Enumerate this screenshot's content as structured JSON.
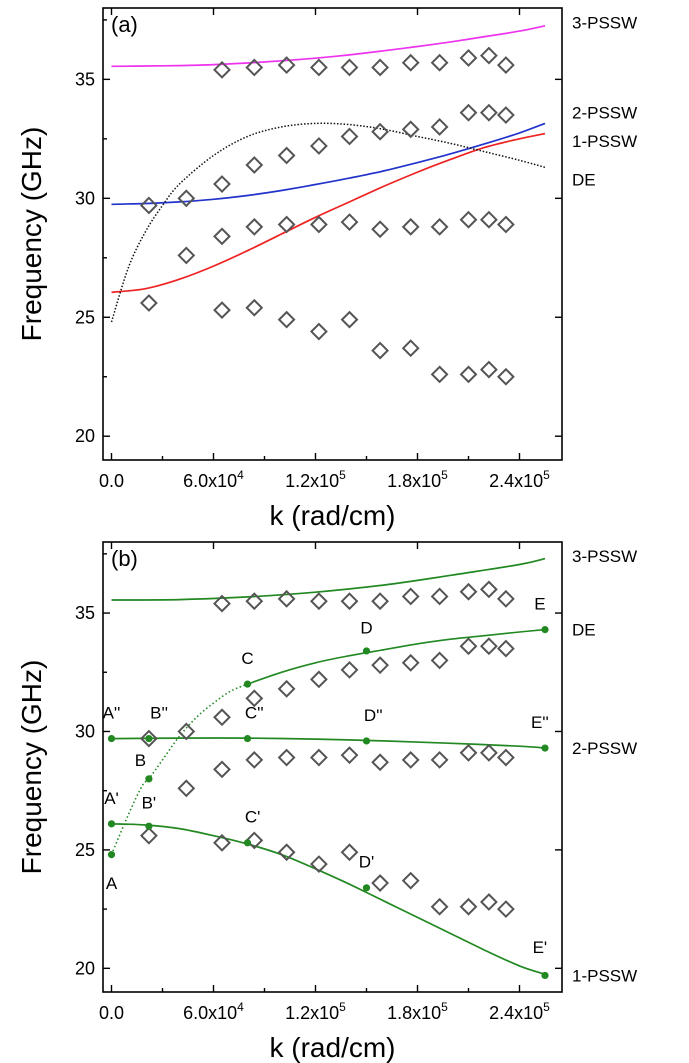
{
  "charts": [
    {
      "type": "scatter",
      "panel_label": "(a)",
      "xlabel": "k (rad/cm)",
      "ylabel": "Frequency (GHz)",
      "xlim": [
        -5000,
        265000
      ],
      "ylim": [
        19,
        38
      ],
      "xticks": [
        0,
        60000,
        120000,
        180000,
        240000
      ],
      "xtick_labels": [
        {
          "mant": "0.0",
          "exp": ""
        },
        {
          "mant": "6.0x10",
          "exp": "4"
        },
        {
          "mant": "1.2x10",
          "exp": "5"
        },
        {
          "mant": "1.8x10",
          "exp": "5"
        },
        {
          "mant": "2.4x10",
          "exp": "5"
        }
      ],
      "yticks": [
        20,
        25,
        30,
        35
      ],
      "ytick_labels": [
        "20",
        "25",
        "30",
        "35"
      ],
      "series": [
        {
          "name": "3-PSSW",
          "color": "#ee33ee",
          "style": "solid",
          "x": [
            0,
            20000,
            40000,
            60000,
            80000,
            100000,
            120000,
            140000,
            160000,
            180000,
            200000,
            220000,
            240000,
            255000
          ],
          "y": [
            35.55,
            35.56,
            35.58,
            35.62,
            35.69,
            35.78,
            35.89,
            36.03,
            36.2,
            36.38,
            36.58,
            36.8,
            37.03,
            37.25
          ]
        },
        {
          "name": "2-PSSW",
          "color": "#2233cc",
          "style": "solid",
          "x": [
            0,
            20000,
            40000,
            60000,
            80000,
            100000,
            120000,
            140000,
            160000,
            180000,
            200000,
            220000,
            240000,
            255000
          ],
          "y": [
            29.75,
            29.78,
            29.85,
            29.96,
            30.12,
            30.33,
            30.58,
            30.85,
            31.15,
            31.5,
            31.88,
            32.3,
            32.75,
            33.15
          ]
        },
        {
          "name": "1-PSSW",
          "color": "#ee2222",
          "style": "solid",
          "x": [
            0,
            20000,
            40000,
            60000,
            80000,
            100000,
            120000,
            140000,
            160000,
            180000,
            200000,
            220000,
            240000,
            255000
          ],
          "y": [
            26.05,
            26.2,
            26.6,
            27.15,
            27.8,
            28.5,
            29.2,
            29.85,
            30.5,
            31.1,
            31.65,
            32.15,
            32.5,
            32.72
          ]
        },
        {
          "name": "DE",
          "color": "#111111",
          "style": "dotted",
          "x": [
            0,
            10000,
            20000,
            30000,
            40000,
            60000,
            80000,
            100000,
            120000,
            140000,
            160000,
            180000,
            200000,
            220000,
            240000,
            255000
          ],
          "y": [
            24.8,
            27.1,
            28.6,
            29.7,
            30.6,
            31.8,
            32.6,
            33.0,
            33.15,
            33.1,
            32.9,
            32.6,
            32.3,
            31.95,
            31.6,
            31.3
          ]
        },
        {
          "name": "",
          "marker": "diamond",
          "color": "#555555",
          "x": [
            22000,
            44000,
            65000,
            84000,
            103000,
            122000,
            140000,
            158000,
            176000,
            193000,
            210000,
            222000,
            232000,
            22000,
            44000,
            65000,
            84000,
            103000,
            122000,
            140000,
            158000,
            176000,
            193000,
            210000,
            222000,
            232000,
            65000,
            84000,
            103000,
            122000,
            140000,
            158000,
            176000,
            193000,
            210000,
            222000,
            232000,
            65000,
            84000,
            103000,
            122000,
            140000,
            158000,
            176000,
            193000,
            210000,
            222000,
            232000
          ],
          "y": [
            25.6,
            27.6,
            25.3,
            25.4,
            24.9,
            24.4,
            24.9,
            23.6,
            23.7,
            22.6,
            22.6,
            22.8,
            22.5,
            29.7,
            30.0,
            28.4,
            28.8,
            28.9,
            28.9,
            29.0,
            28.7,
            28.8,
            28.8,
            29.1,
            29.1,
            28.9,
            30.6,
            31.4,
            31.8,
            32.2,
            32.6,
            32.8,
            32.9,
            33.0,
            33.6,
            33.6,
            33.5,
            35.4,
            35.5,
            35.6,
            35.5,
            35.5,
            35.5,
            35.7,
            35.7,
            35.9,
            36.0,
            35.6
          ]
        }
      ],
      "right_labels": [
        "3-PSSW",
        "2-PSSW",
        "1-PSSW",
        "DE"
      ],
      "right_label_y": [
        37.4,
        33.6,
        32.4,
        30.8
      ]
    },
    {
      "type": "scatter",
      "panel_label": "(b)",
      "xlabel": "k (rad/cm)",
      "ylabel": "Frequency (GHz)",
      "xlim": [
        -5000,
        265000
      ],
      "ylim": [
        19,
        38
      ],
      "xticks": [
        0,
        60000,
        120000,
        180000,
        240000
      ],
      "xtick_labels": [
        {
          "mant": "0.0",
          "exp": ""
        },
        {
          "mant": "6.0x10",
          "exp": "4"
        },
        {
          "mant": "1.2x10",
          "exp": "5"
        },
        {
          "mant": "1.8x10",
          "exp": "5"
        },
        {
          "mant": "2.4x10",
          "exp": "5"
        }
      ],
      "yticks": [
        20,
        25,
        30,
        35
      ],
      "ytick_labels": [
        "20",
        "25",
        "30",
        "35"
      ],
      "series": [
        {
          "name": "3-PSSW",
          "color": "#228822",
          "style": "solid",
          "x": [
            0,
            40000,
            80000,
            120000,
            160000,
            200000,
            240000,
            255000
          ],
          "y": [
            35.55,
            35.57,
            35.68,
            35.88,
            36.18,
            36.6,
            37.05,
            37.3
          ]
        },
        {
          "name": "DE",
          "color": "#228822",
          "style": "dotted-solid",
          "x": [
            0,
            10000,
            18000,
            22000,
            30000,
            40000,
            50000,
            60000,
            70000,
            80000,
            100000,
            120000,
            140000,
            160000,
            180000,
            200000,
            220000,
            240000,
            255000
          ],
          "y": [
            24.8,
            26.5,
            27.7,
            28.0,
            28.8,
            29.8,
            30.6,
            31.2,
            31.7,
            32.0,
            32.5,
            32.9,
            33.2,
            33.45,
            33.7,
            33.9,
            34.05,
            34.2,
            34.3
          ],
          "solid_from_x": 80000
        },
        {
          "name": "2-PSSW",
          "color": "#228822",
          "style": "solid",
          "x": [
            0,
            40000,
            80000,
            120000,
            160000,
            200000,
            240000,
            255000
          ],
          "y": [
            29.7,
            29.72,
            29.72,
            29.68,
            29.6,
            29.5,
            29.38,
            29.3
          ]
        },
        {
          "name": "1-PSSW",
          "color": "#228822",
          "style": "solid",
          "x": [
            0,
            20000,
            40000,
            60000,
            80000,
            100000,
            120000,
            140000,
            160000,
            180000,
            200000,
            220000,
            240000,
            255000
          ],
          "y": [
            26.1,
            26.05,
            25.9,
            25.6,
            25.25,
            24.8,
            24.2,
            23.55,
            22.85,
            22.15,
            21.45,
            20.75,
            20.1,
            19.75
          ]
        },
        {
          "name": "",
          "marker": "diamond",
          "color": "#555555",
          "x": [
            22000,
            44000,
            65000,
            84000,
            103000,
            122000,
            140000,
            158000,
            176000,
            193000,
            210000,
            222000,
            232000,
            22000,
            44000,
            65000,
            84000,
            103000,
            122000,
            140000,
            158000,
            176000,
            193000,
            210000,
            222000,
            232000,
            65000,
            84000,
            103000,
            122000,
            140000,
            158000,
            176000,
            193000,
            210000,
            222000,
            232000,
            65000,
            84000,
            103000,
            122000,
            140000,
            158000,
            176000,
            193000,
            210000,
            222000,
            232000
          ],
          "y": [
            25.6,
            27.6,
            25.3,
            25.4,
            24.9,
            24.4,
            24.9,
            23.6,
            23.7,
            22.6,
            22.6,
            22.8,
            22.5,
            29.7,
            30.0,
            28.4,
            28.8,
            28.9,
            28.9,
            29.0,
            28.7,
            28.8,
            28.8,
            29.1,
            29.1,
            28.9,
            30.6,
            31.4,
            31.8,
            32.2,
            32.6,
            32.8,
            32.9,
            33.0,
            33.6,
            33.6,
            33.5,
            35.4,
            35.5,
            35.6,
            35.5,
            35.5,
            35.5,
            35.7,
            35.7,
            35.9,
            36.0,
            35.6
          ]
        }
      ],
      "key_points": [
        {
          "label": "A",
          "x": 0,
          "y": 24.8,
          "lx": 0,
          "ly": 23.6
        },
        {
          "label": "A'",
          "x": 0,
          "y": 26.1,
          "lx": 0,
          "ly": 27.2
        },
        {
          "label": "A''",
          "x": 0,
          "y": 29.7,
          "lx": 0,
          "ly": 30.8
        },
        {
          "label": "B",
          "x": 22000,
          "y": 28.0,
          "lx": 17000,
          "ly": 28.8
        },
        {
          "label": "B'",
          "x": 22000,
          "y": 26.0,
          "lx": 22000,
          "ly": 27.0
        },
        {
          "label": "B''",
          "x": 22000,
          "y": 29.7,
          "lx": 28000,
          "ly": 30.8
        },
        {
          "label": "C",
          "x": 80000,
          "y": 32.0,
          "lx": 80000,
          "ly": 33.1
        },
        {
          "label": "C'",
          "x": 80000,
          "y": 25.3,
          "lx": 83000,
          "ly": 26.4
        },
        {
          "label": "C''",
          "x": 80000,
          "y": 29.7,
          "lx": 84000,
          "ly": 30.8
        },
        {
          "label": "D",
          "x": 150000,
          "y": 33.4,
          "lx": 150000,
          "ly": 34.4
        },
        {
          "label": "D'",
          "x": 150000,
          "y": 23.4,
          "lx": 150000,
          "ly": 24.5
        },
        {
          "label": "D''",
          "x": 150000,
          "y": 29.6,
          "lx": 154000,
          "ly": 30.7
        },
        {
          "label": "E",
          "x": 255000,
          "y": 34.3,
          "lx": 252000,
          "ly": 35.4
        },
        {
          "label": "E'",
          "x": 255000,
          "y": 19.7,
          "lx": 252000,
          "ly": 20.9
        },
        {
          "label": "E''",
          "x": 255000,
          "y": 29.3,
          "lx": 252000,
          "ly": 30.4
        }
      ],
      "key_point_color": "#228822",
      "right_labels": [
        "3-PSSW",
        "DE",
        "2-PSSW",
        "1-PSSW"
      ],
      "right_label_y": [
        37.4,
        34.3,
        29.3,
        19.7
      ]
    }
  ]
}
